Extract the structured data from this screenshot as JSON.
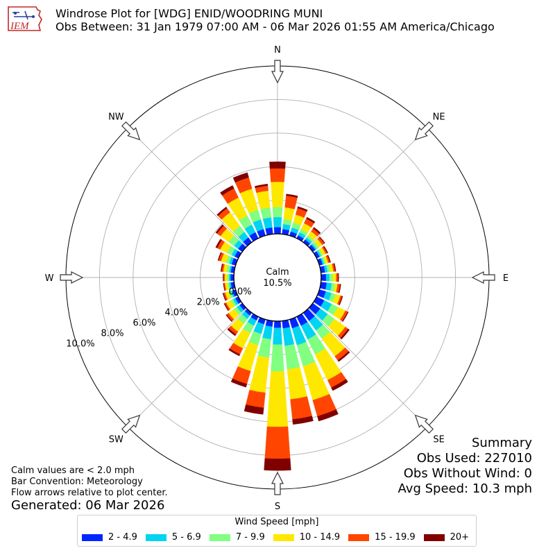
{
  "header": {
    "logo_text": "IEM",
    "title": "Windrose Plot for [WDG] ENID/WOODRING MUNI",
    "subtitle": "Obs Between: 31 Jan 1979 07:00 AM - 06 Mar 2026 01:55 AM America/Chicago"
  },
  "summary": {
    "heading": "Summary",
    "obs_used": "Obs Used: 227010",
    "obs_without_wind": "Obs Without Wind: 0",
    "avg_speed": "Avg Speed: 10.3 mph"
  },
  "notes": {
    "calm": "Calm values are < 2.0 mph",
    "bar_convention": "Bar Convention: Meteorology",
    "flow_arrows": "Flow arrows relative to plot center."
  },
  "generated": "Generated: 06 Mar 2026",
  "colors": {
    "bins": [
      "#0026ff",
      "#00d4f0",
      "#80ff80",
      "#ffe800",
      "#ff4500",
      "#800000"
    ],
    "grid": "#b0b0b0",
    "arrow_fill": "#ffffff",
    "arrow_stroke": "#333333"
  },
  "chart_data": {
    "type": "windrose",
    "compass_labels": [
      {
        "label": "N",
        "angle": 0
      },
      {
        "label": "NE",
        "angle": 45
      },
      {
        "label": "E",
        "angle": 90
      },
      {
        "label": "SE",
        "angle": 135
      },
      {
        "label": "S",
        "angle": 180
      },
      {
        "label": "SW",
        "angle": 225
      },
      {
        "label": "W",
        "angle": 270
      },
      {
        "label": "NW",
        "angle": 315
      }
    ],
    "radial_unit": "percent",
    "radial_range": [
      -2.6,
      10.0
    ],
    "radial_ticks": [
      0,
      2,
      4,
      6,
      8,
      10
    ],
    "radial_tick_labels": [
      "0.0%",
      "2.0%",
      "4.0%",
      "6.0%",
      "8.0%",
      "10.0%"
    ],
    "calm": {
      "label": "Calm",
      "value": "10.5%"
    },
    "legend_title": "Wind Speed [mph]",
    "speed_bins": [
      "2 - 4.9",
      "5 - 6.9",
      "7 - 9.9",
      "10 - 14.9",
      "15 - 19.9",
      "20+"
    ],
    "directions_deg": [
      0,
      10,
      20,
      30,
      40,
      50,
      60,
      70,
      80,
      90,
      100,
      110,
      120,
      130,
      140,
      150,
      160,
      170,
      180,
      190,
      200,
      210,
      220,
      230,
      240,
      250,
      260,
      270,
      280,
      290,
      300,
      310,
      320,
      330,
      340,
      350
    ],
    "cumulative_percent": [
      [
        0.4,
        1.0,
        1.6,
        3.1,
        3.9,
        4.3
      ],
      [
        0.3,
        0.6,
        0.9,
        1.6,
        2.3,
        2.4
      ],
      [
        0.25,
        0.5,
        0.8,
        1.3,
        1.7,
        1.8
      ],
      [
        0.2,
        0.4,
        0.6,
        1.0,
        1.3,
        1.4
      ],
      [
        0.2,
        0.35,
        0.5,
        0.8,
        1.0,
        1.1
      ],
      [
        0.2,
        0.3,
        0.45,
        0.7,
        0.85,
        0.9
      ],
      [
        0.2,
        0.3,
        0.4,
        0.6,
        0.7,
        0.75
      ],
      [
        0.2,
        0.3,
        0.4,
        0.55,
        0.65,
        0.7
      ],
      [
        0.25,
        0.4,
        0.55,
        0.75,
        0.85,
        0.9
      ],
      [
        0.3,
        0.5,
        0.7,
        0.9,
        1.0,
        1.05
      ],
      [
        0.35,
        0.65,
        0.85,
        1.0,
        1.15,
        1.2
      ],
      [
        0.4,
        0.75,
        1.0,
        1.3,
        1.4,
        1.45
      ],
      [
        0.5,
        1.0,
        1.4,
        1.9,
        2.05,
        2.1
      ],
      [
        0.55,
        1.1,
        1.6,
        2.4,
        2.6,
        2.7
      ],
      [
        0.6,
        1.3,
        1.9,
        3.2,
        3.5,
        3.6
      ],
      [
        0.6,
        1.5,
        2.5,
        4.2,
        4.7,
        4.9
      ],
      [
        0.55,
        1.6,
        2.9,
        5.0,
        6.0,
        6.3
      ],
      [
        0.45,
        1.5,
        2.9,
        4.7,
        5.9,
        6.2
      ],
      [
        0.4,
        1.4,
        3.0,
        6.3,
        8.2,
        8.9
      ],
      [
        0.35,
        1.1,
        2.2,
        4.3,
        5.2,
        5.6
      ],
      [
        0.3,
        0.9,
        1.6,
        3.2,
        4.0,
        4.2
      ],
      [
        0.25,
        0.6,
        1.1,
        2.1,
        2.5,
        2.6
      ],
      [
        0.2,
        0.45,
        0.8,
        1.4,
        1.6,
        1.7
      ],
      [
        0.2,
        0.4,
        0.6,
        1.0,
        1.15,
        1.2
      ],
      [
        0.2,
        0.35,
        0.5,
        0.8,
        0.9,
        0.95
      ],
      [
        0.2,
        0.3,
        0.45,
        0.65,
        0.75,
        0.8
      ],
      [
        0.2,
        0.3,
        0.4,
        0.55,
        0.62,
        0.65
      ],
      [
        0.2,
        0.3,
        0.4,
        0.55,
        0.62,
        0.65
      ],
      [
        0.2,
        0.3,
        0.45,
        0.65,
        0.75,
        0.8
      ],
      [
        0.25,
        0.4,
        0.6,
        0.9,
        1.05,
        1.1
      ],
      [
        0.25,
        0.45,
        0.75,
        1.2,
        1.4,
        1.5
      ],
      [
        0.3,
        0.6,
        1.0,
        1.6,
        1.85,
        1.95
      ],
      [
        0.35,
        0.75,
        1.2,
        2.2,
        2.5,
        2.6
      ],
      [
        0.4,
        0.9,
        1.5,
        2.7,
        3.3,
        3.5
      ],
      [
        0.4,
        1.0,
        1.6,
        2.9,
        3.6,
        3.9
      ],
      [
        0.4,
        1.0,
        1.6,
        2.6,
        2.9,
        3.0
      ]
    ]
  }
}
